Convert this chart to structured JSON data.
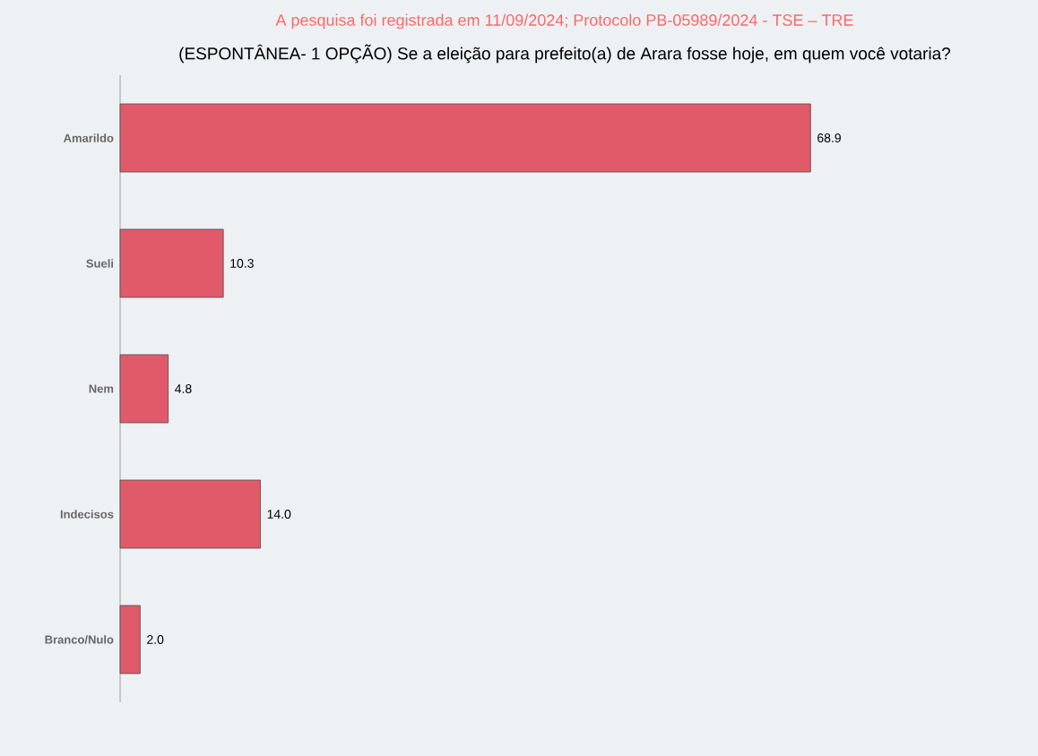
{
  "chart_data": {
    "type": "bar",
    "orientation": "horizontal",
    "title": "(ESPONTÂNEA- 1 OPÇÃO) Se a eleição para prefeito(a) de Arara fosse hoje, em quem você votaria?",
    "annotations": [
      "A pesquisa foi registrada em 11/09/2024; Protocolo PB-05989/2024 - TSE – TRE"
    ],
    "categories": [
      "Amarildo",
      "Sueli",
      "Nem",
      "Indecisos",
      "Branco/Nulo"
    ],
    "values": [
      68.9,
      10.3,
      4.8,
      14.0,
      2.0
    ],
    "value_labels": [
      "68.9",
      "10.3",
      "4.8",
      "14.0",
      "2.0"
    ],
    "color": "#e05a6a"
  }
}
